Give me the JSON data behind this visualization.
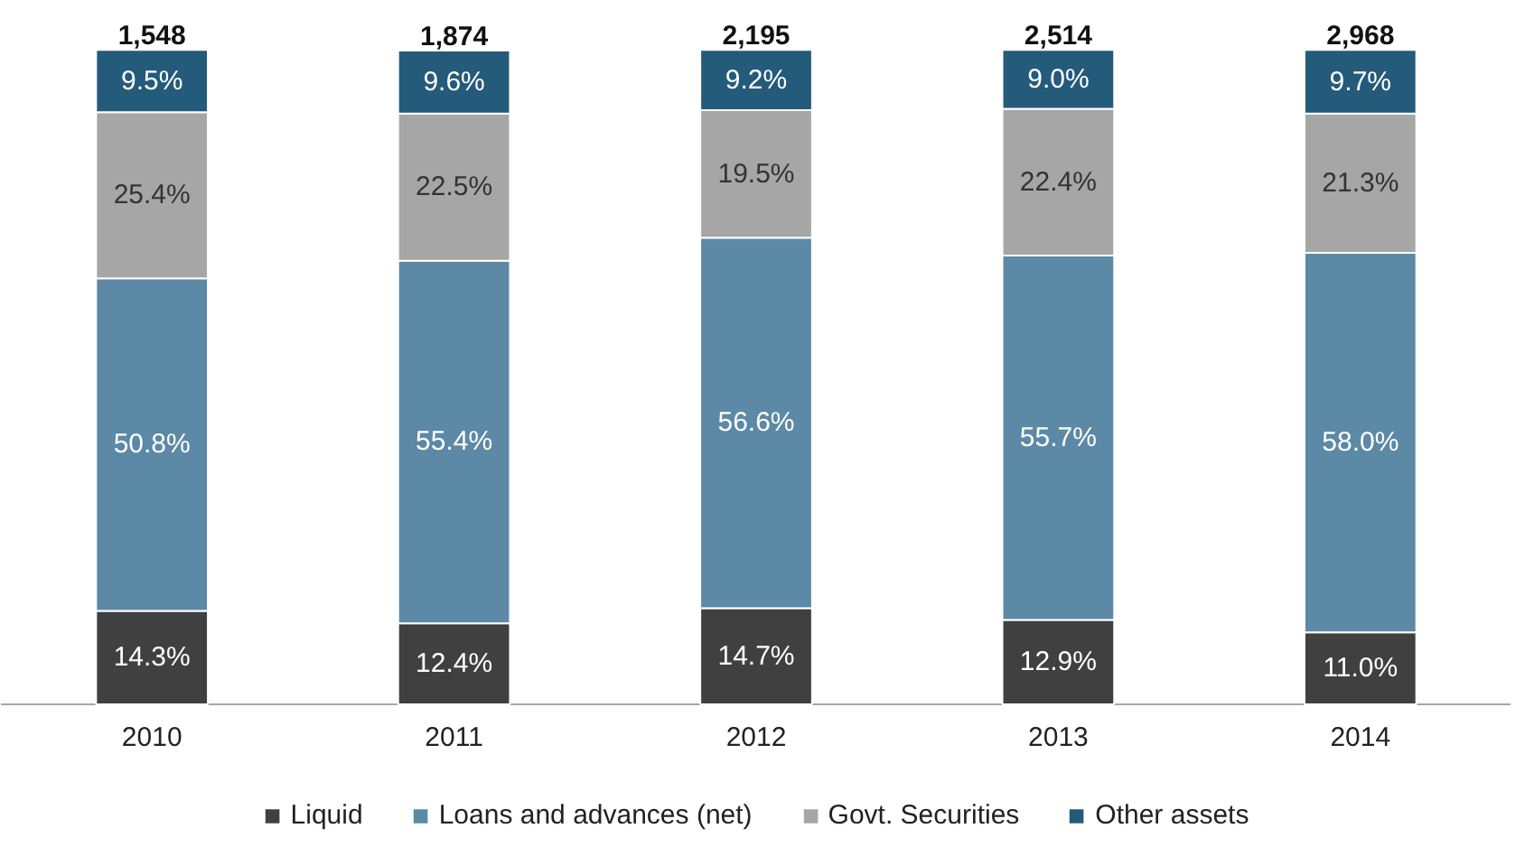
{
  "chart_data": {
    "type": "bar",
    "stacked": true,
    "categories": [
      "2010",
      "2011",
      "2012",
      "2013",
      "2014"
    ],
    "series": [
      {
        "name": "Liquid",
        "color": "#404040",
        "values": [
          14.3,
          12.4,
          14.7,
          12.9,
          11.0
        ],
        "value_labels": [
          "14.3%",
          "12.4%",
          "14.7%",
          "12.9%",
          "11.0%"
        ]
      },
      {
        "name": "Loans and advances (net)",
        "color": "#5b89a6",
        "values": [
          50.8,
          55.4,
          56.6,
          55.7,
          58.0
        ],
        "value_labels": [
          "50.8%",
          "55.4%",
          "56.6%",
          "55.7%",
          "58.0%"
        ]
      },
      {
        "name": "Govt. Securities",
        "color": "#a6a6a6",
        "values": [
          25.4,
          22.5,
          19.5,
          22.4,
          21.3
        ],
        "value_labels": [
          "25.4%",
          "22.5%",
          "19.5%",
          "22.4%",
          "21.3%"
        ]
      },
      {
        "name": "Other assets",
        "color": "#245a7a",
        "values": [
          9.5,
          9.6,
          9.2,
          9.0,
          9.7
        ],
        "value_labels": [
          "9.5%",
          "9.6%",
          "9.2%",
          "9.0%",
          "9.7%"
        ]
      }
    ],
    "annotations": [
      "1,548",
      "1,874",
      "2,195",
      "2,514",
      "2,968"
    ],
    "tick_labels": "x",
    "legend": "bottom"
  }
}
